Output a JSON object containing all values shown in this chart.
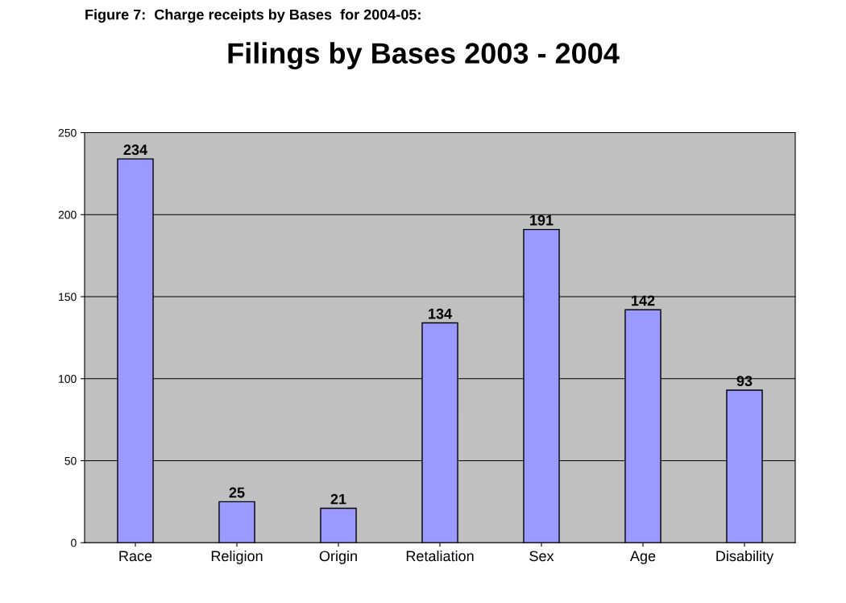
{
  "chart_data": {
    "type": "bar",
    "title": "Filings by Bases 2003 - 2004",
    "annotations": [
      "Figure 7:  Charge receipts by Bases  for 2004-05:"
    ],
    "categories": [
      "Race",
      "Religion",
      "Origin",
      "Retaliation",
      "Sex",
      "Age",
      "Disability"
    ],
    "values": [
      234,
      25,
      21,
      134,
      191,
      142,
      93
    ],
    "color": "#9999ff",
    "ylim": [
      0,
      250
    ],
    "yticks": [
      0,
      50,
      100,
      150,
      200,
      250
    ],
    "grid": "y",
    "data_labels": true,
    "legend": false
  }
}
